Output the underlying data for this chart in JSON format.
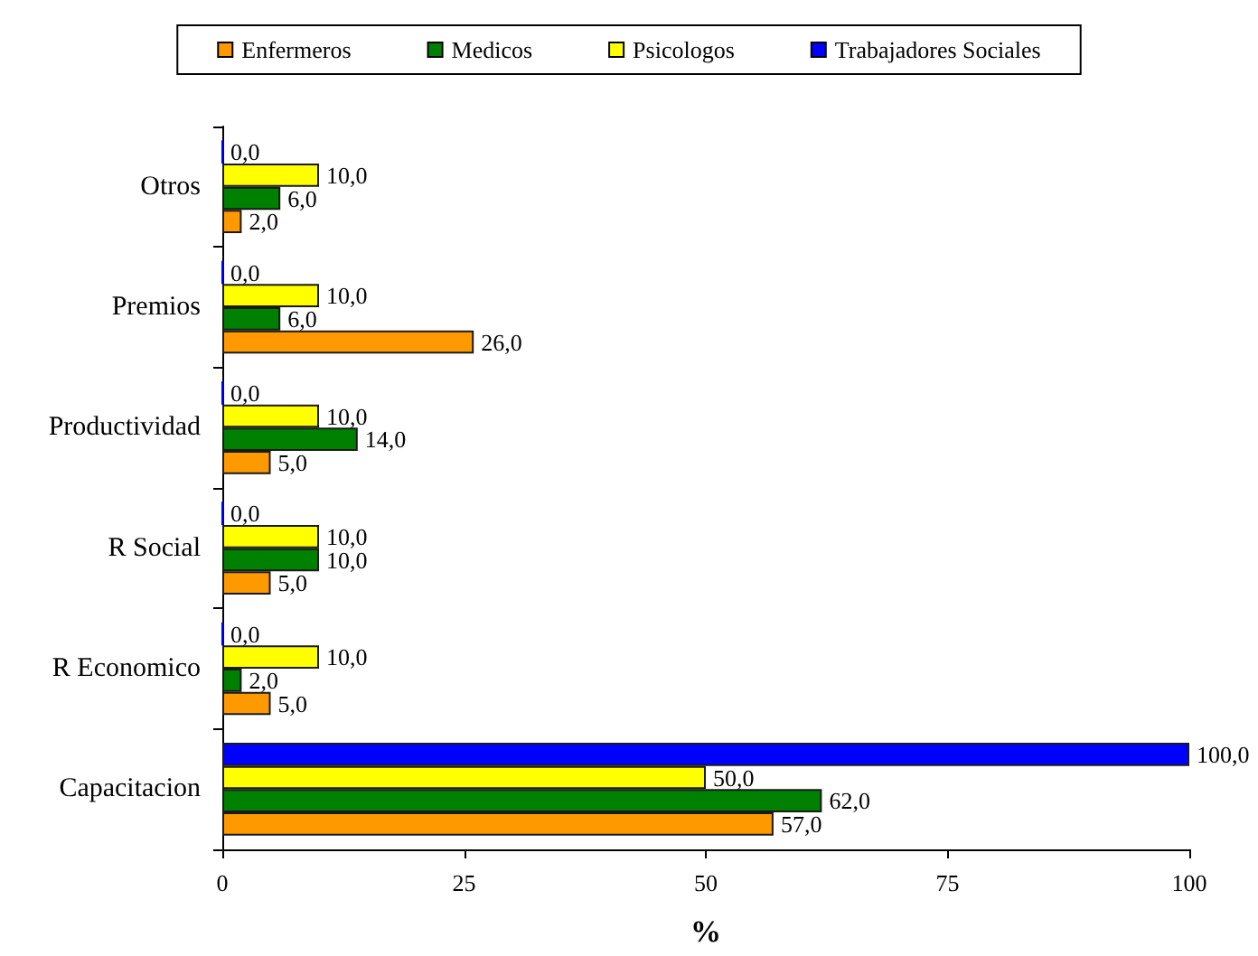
{
  "chart_data": {
    "type": "bar",
    "orientation": "horizontal",
    "categories": [
      "Otros",
      "Premios",
      "Productividad",
      "R Social",
      "R Economico",
      "Capacitacion"
    ],
    "series": [
      {
        "name": "Enfermeros",
        "color": "#ff9900",
        "values": [
          2,
          26,
          5,
          5,
          5,
          57
        ],
        "value_labels": [
          "2,0",
          "26,0",
          "5,0",
          "5,0",
          "5,0",
          "57,0"
        ]
      },
      {
        "name": "Medicos",
        "color": "#008000",
        "values": [
          6,
          6,
          14,
          10,
          2,
          62
        ],
        "value_labels": [
          "6,0",
          "6,0",
          "14,0",
          "10,0",
          "2,0",
          "62,0"
        ]
      },
      {
        "name": "Psicologos",
        "color": "#ffff00",
        "values": [
          10,
          10,
          10,
          10,
          10,
          50
        ],
        "value_labels": [
          "10,0",
          "10,0",
          "10,0",
          "10,0",
          "10,0",
          "50,0"
        ]
      },
      {
        "name": "Trabajadores Sociales",
        "color": "#0000ff",
        "values": [
          0,
          0,
          0,
          0,
          0,
          100
        ],
        "value_labels": [
          "0,0",
          "0,0",
          "0,0",
          "0,0",
          "0,0",
          "100,0"
        ]
      }
    ],
    "xlabel": "%",
    "xlim": [
      0,
      100
    ],
    "xticks": [
      0,
      25,
      50,
      75,
      100
    ],
    "legend": "top"
  }
}
